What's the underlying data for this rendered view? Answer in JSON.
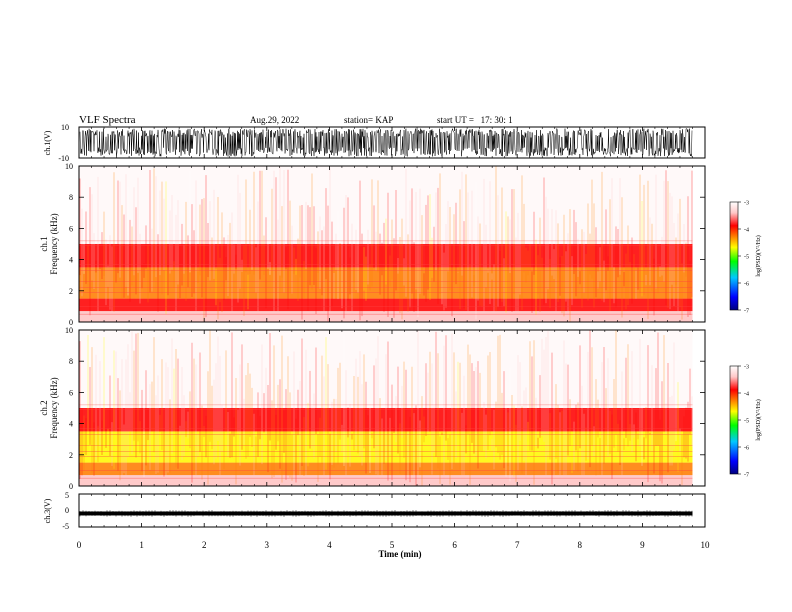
{
  "header": {
    "title": "VLF Spectra",
    "date": "Aug.29, 2022",
    "station": "station= KAP",
    "start": "start UT =   17: 30: 1"
  },
  "colors": {
    "background": "#ffffff",
    "axis": "#000000",
    "waveform": "#000000",
    "colormap": [
      "#000080",
      "#0000ff",
      "#00c8ff",
      "#00ff00",
      "#ffff00",
      "#ff8000",
      "#ff0000",
      "#ffc8c8",
      "#ffffff"
    ]
  },
  "chart_data": [
    {
      "type": "line",
      "panel": "ch1-waveform",
      "ylabel": "ch.1(V)",
      "xlim": [
        0,
        10
      ],
      "ylim": [
        -10,
        10
      ],
      "ytick_labels": [
        "10",
        "-10"
      ],
      "x_range_data": [
        0,
        9.8
      ],
      "amplitude_range": [
        -9,
        9
      ],
      "description_values": "dense broadband waveform saturating near ±9 V"
    },
    {
      "type": "heatmap",
      "panel": "ch1-spectrogram",
      "ylabel": "ch.1\nFrequency (kHz)",
      "xlim": [
        0,
        10
      ],
      "ylim": [
        0,
        10
      ],
      "ytick_labels": [
        "0",
        "2",
        "4",
        "6",
        "8",
        "10"
      ],
      "x_range_data": [
        0,
        9.8
      ],
      "bands": [
        {
          "f_low": 0,
          "f_high": 0.7,
          "level": -3.5
        },
        {
          "f_low": 0.7,
          "f_high": 1.5,
          "level": -4.2
        },
        {
          "f_low": 1.5,
          "f_high": 3.5,
          "level": -4.6
        },
        {
          "f_low": 3.5,
          "f_high": 5.0,
          "level": -3.9
        },
        {
          "f_low": 5.0,
          "f_high": 10,
          "level": -3.2
        }
      ],
      "colorbar": {
        "label": "log(PSD)(V²/Hz)",
        "range": [
          -7,
          -3
        ],
        "tick_labels": [
          "-3",
          "-4",
          "-5",
          "-6",
          "-7"
        ],
        "ticks": [
          -3,
          -4,
          -5,
          -6,
          -7
        ]
      }
    },
    {
      "type": "heatmap",
      "panel": "ch2-spectrogram",
      "ylabel": "ch.2\nFrequency (kHz)",
      "xlim": [
        0,
        10
      ],
      "ylim": [
        0,
        10
      ],
      "ytick_labels": [
        "0",
        "2",
        "4",
        "6",
        "8",
        "10"
      ],
      "x_range_data": [
        0,
        9.8
      ],
      "bands": [
        {
          "f_low": 0,
          "f_high": 0.7,
          "level": -3.5
        },
        {
          "f_low": 0.7,
          "f_high": 1.5,
          "level": -4.4
        },
        {
          "f_low": 1.5,
          "f_high": 3.5,
          "level": -5.0
        },
        {
          "f_low": 3.5,
          "f_high": 5.0,
          "level": -3.9
        },
        {
          "f_low": 5.0,
          "f_high": 10,
          "level": -3.2
        }
      ],
      "colorbar": {
        "label": "log(PSD)(V²/Hz)",
        "range": [
          -7,
          -3
        ],
        "tick_labels": [
          "-3",
          "-4",
          "-5",
          "-6",
          "-7"
        ],
        "ticks": [
          -3,
          -4,
          -5,
          -6,
          -7
        ]
      }
    },
    {
      "type": "line",
      "panel": "ch3-waveform",
      "ylabel": "ch.3(V)",
      "xlim": [
        0,
        10
      ],
      "ylim": [
        -5,
        5
      ],
      "ytick_labels": [
        "5",
        "0",
        "-5"
      ],
      "x_range_data": [
        0,
        9.8
      ],
      "band": [
        -1.5,
        -0.3
      ]
    }
  ],
  "xaxis": {
    "label": "Time (min)",
    "ticks": [
      0,
      1,
      2,
      3,
      4,
      5,
      6,
      7,
      8,
      9,
      10
    ],
    "tick_labels": [
      "0",
      "1",
      "2",
      "3",
      "4",
      "5",
      "6",
      "7",
      "8",
      "9",
      "10"
    ]
  }
}
